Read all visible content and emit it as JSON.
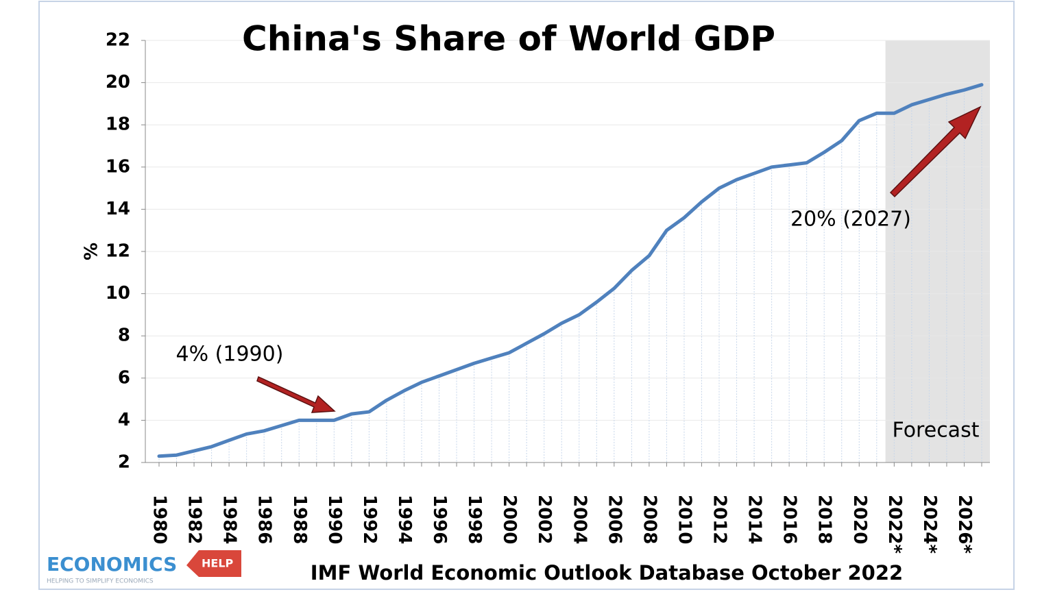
{
  "chart_data": {
    "type": "line",
    "title": "China's Share of World GDP",
    "y_label": "%",
    "categories": [
      "1980",
      null,
      "1982",
      null,
      "1984",
      null,
      "1986",
      null,
      "1988",
      null,
      "1990",
      null,
      "1992",
      null,
      "1994",
      null,
      "1996",
      null,
      "1998",
      null,
      "2000",
      null,
      "2002",
      null,
      "2004",
      null,
      "2006",
      null,
      "2008",
      null,
      "2010",
      null,
      "2012",
      null,
      "2014",
      null,
      "2016",
      null,
      "2018",
      null,
      "2020",
      null,
      "2022*",
      null,
      "2024*",
      null,
      "2026*",
      null
    ],
    "values": [
      2.3,
      2.35,
      2.55,
      2.75,
      3.05,
      3.35,
      3.5,
      3.75,
      4.0,
      4.0,
      4.0,
      4.3,
      4.4,
      4.95,
      5.4,
      5.8,
      6.1,
      6.4,
      6.7,
      6.95,
      7.2,
      7.65,
      8.1,
      8.6,
      9.0,
      9.6,
      10.25,
      11.1,
      11.8,
      13.0,
      13.6,
      14.35,
      15.0,
      15.4,
      15.7,
      16.0,
      16.1,
      16.2,
      16.7,
      17.25,
      18.2,
      18.55,
      18.55,
      18.95,
      19.2,
      19.45,
      19.65,
      19.9
    ],
    "color": "#4f81bd",
    "ylim": [
      2,
      22
    ],
    "yticks": [
      2,
      4,
      6,
      8,
      10,
      12,
      14,
      16,
      18,
      20,
      22
    ],
    "grid": true,
    "annotations": [
      "4% (1990)",
      "20% (2027)",
      "Forecast"
    ],
    "source": "IMF World Economic Outlook Database October 2022",
    "logo": {
      "name": "ECONOMICS",
      "tag": "HELP",
      "tagline": "HELPING TO SIMPLIFY ECONOMICS"
    }
  }
}
